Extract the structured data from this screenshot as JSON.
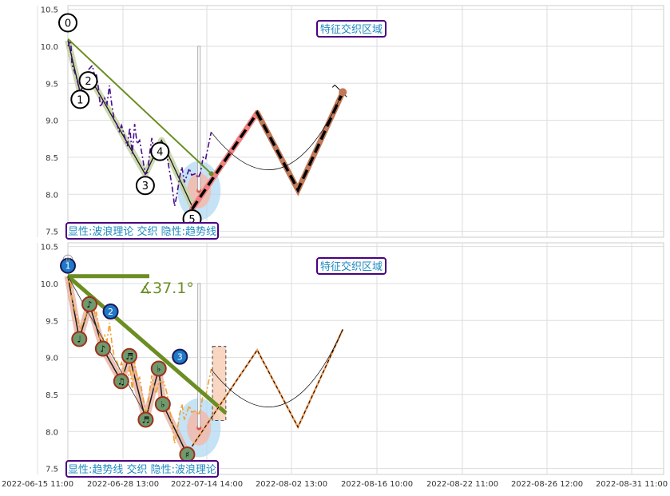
{
  "chart_data": {
    "type": "line",
    "x_ticks": [
      "2022-06-15 11:00",
      "2022-06-28 13:00",
      "2022-07-14 14:00",
      "2022-08-02 13:00",
      "2022-08-16 10:00",
      "2022-08-22 11:00",
      "2022-08-26 12:00",
      "2022-08-31 11:00"
    ],
    "y_ticks": [
      7.5,
      8.0,
      8.5,
      9.0,
      9.5,
      10.0,
      10.5
    ],
    "grid": true,
    "panels": [
      {
        "name": "top",
        "ylim": [
          7.42,
          10.55
        ],
        "caption": "显性:波浪理论 交织 隐性:趋势线",
        "region_label": "特征交织区域",
        "price_line": {
          "x": [
            0,
            0.7,
            1.0,
            2.0,
            3.0,
            4.0,
            5.0,
            6.0,
            6.8,
            7.0,
            7.4,
            8.0,
            9.0,
            9.6,
            10.2,
            10.8,
            11.4,
            12.0,
            12.6,
            13.2,
            13.8,
            14.6,
            15.2,
            15.8,
            16.4,
            17.0,
            17.6,
            18.4,
            19.0,
            19.6,
            20.0,
            20.6,
            21.0,
            21.6,
            22.4,
            23.0,
            23.6,
            24.4,
            25.0,
            25.6,
            26.2,
            26.8,
            27.4,
            28.0,
            28.6,
            29.2,
            29.8,
            30.4,
            30.9,
            31.4,
            32.0,
            32.6,
            33.2,
            33.8,
            34.4,
            35.2
          ],
          "y": [
            10.0,
            10.08,
            9.75,
            9.6,
            9.38,
            9.5,
            9.68,
            9.74,
            9.55,
            9.62,
            9.48,
            9.18,
            9.3,
            9.22,
            9.47,
            9.2,
            9.0,
            8.95,
            8.85,
            8.93,
            8.8,
            8.65,
            8.9,
            8.55,
            8.95,
            8.68,
            8.73,
            8.48,
            8.27,
            8.3,
            8.52,
            8.76,
            8.64,
            8.51,
            8.68,
            8.66,
            8.67,
            8.5,
            8.3,
            8.1,
            7.84,
            8.0,
            8.22,
            8.37,
            8.16,
            8.25,
            8.35,
            8.26,
            8.27,
            8.28,
            8.22,
            8.3,
            8.5,
            8.47,
            8.63,
            8.84
          ]
        },
        "wave_points": [
          {
            "label": "0",
            "x": 0,
            "y": 10.08
          },
          {
            "label": "1",
            "x": 3,
            "y": 9.38
          },
          {
            "label": "2",
            "x": 5,
            "y": 9.62
          },
          {
            "label": "3",
            "x": 19,
            "y": 8.27
          },
          {
            "label": "4",
            "x": 23,
            "y": 8.73
          },
          {
            "label": "5",
            "x": 30.5,
            "y": 7.84
          }
        ],
        "trend_line": {
          "x": [
            0,
            35.2
          ],
          "y": [
            10.1,
            8.28
          ]
        },
        "projection": {
          "x": [
            30.5,
            46.5,
            56.5,
            67.5
          ],
          "y": [
            7.8,
            9.1,
            8.06,
            9.38
          ]
        }
      },
      {
        "name": "bottom",
        "ylim": [
          7.42,
          10.55
        ],
        "caption": "显性:趋势线 交织 隐性:波浪理论",
        "region_label": "特征交织区域",
        "angle_label": "∡37.1°",
        "trend_points": [
          {
            "label": "1",
            "x": 0,
            "y": 10.1
          },
          {
            "label": "2",
            "x": 10.5,
            "y": 9.6
          },
          {
            "label": "3",
            "x": 27.5,
            "y": 8.73
          }
        ],
        "music_points": [
          {
            "label": "♩",
            "x": 2.8,
            "y": 9.25
          },
          {
            "label": "♪",
            "x": 5.3,
            "y": 9.72
          },
          {
            "label": "♪",
            "x": 8.6,
            "y": 9.12
          },
          {
            "label": "♫",
            "x": 13.1,
            "y": 8.68
          },
          {
            "label": "♬",
            "x": 15.1,
            "y": 9.02
          },
          {
            "label": "♬",
            "x": 19.1,
            "y": 8.16
          },
          {
            "label": "♭",
            "x": 22.3,
            "y": 8.85
          },
          {
            "label": "♭",
            "x": 23.3,
            "y": 8.37
          },
          {
            "label": "♯",
            "x": 29.3,
            "y": 7.69
          }
        ]
      }
    ]
  }
}
